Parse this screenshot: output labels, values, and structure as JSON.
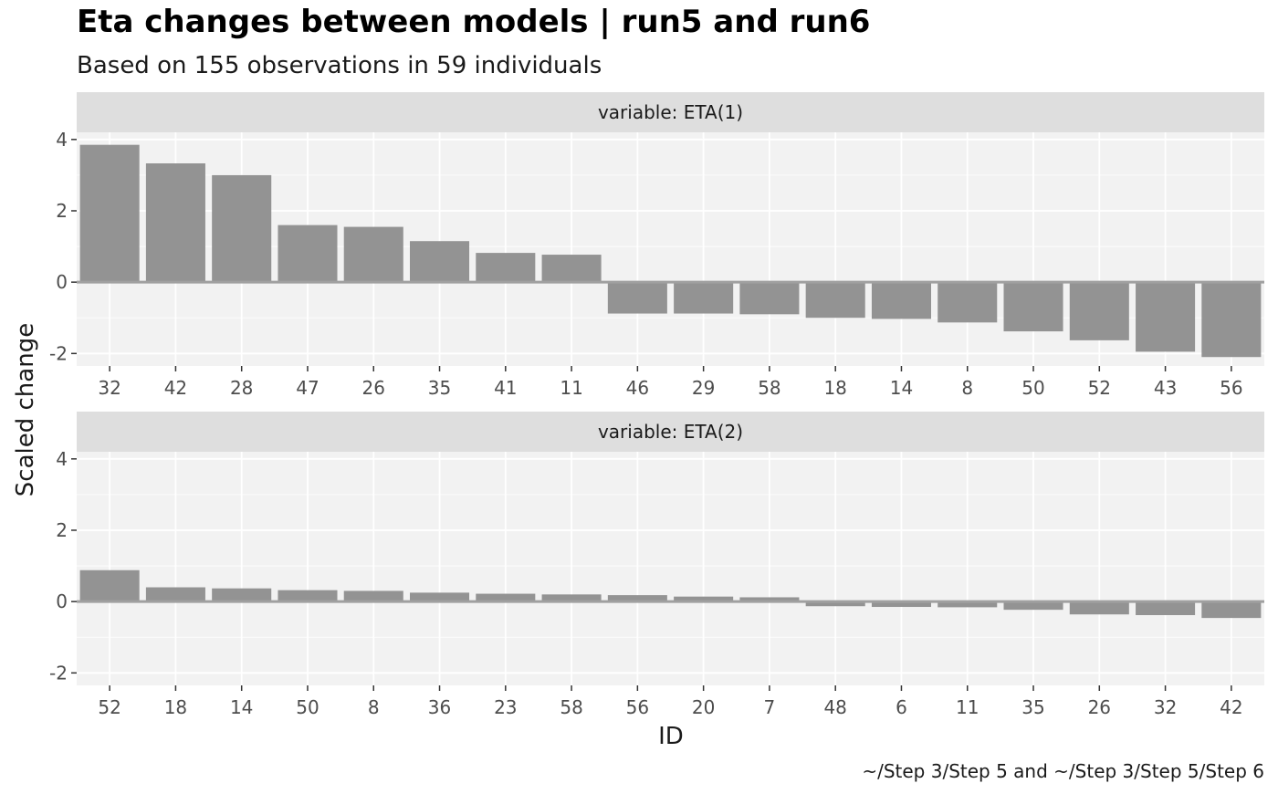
{
  "chart_data": {
    "type": "bar",
    "title": "Eta changes between models | run5 and run6",
    "subtitle": "Based on 155 observations in 59 individuals",
    "xlabel": "ID",
    "ylabel": "Scaled change",
    "caption": "~/Step 3/Step 5 and ~/Step 3/Step 5/Step 6",
    "ylim": [
      -2.35,
      4.2
    ],
    "yticks": [
      -2,
      0,
      2,
      4
    ],
    "grid": true,
    "bar_color": "#939393",
    "panel_background": "#f2f2f2",
    "strip_background": "#dedede",
    "panels": [
      {
        "strip_label": "variable: ETA(1)",
        "categories": [
          "32",
          "42",
          "28",
          "47",
          "26",
          "35",
          "41",
          "11",
          "46",
          "29",
          "58",
          "18",
          "14",
          "8",
          "50",
          "52",
          "43",
          "56"
        ],
        "values": [
          3.85,
          3.33,
          3.0,
          1.6,
          1.55,
          1.15,
          0.82,
          0.77,
          -0.88,
          -0.88,
          -0.9,
          -1.0,
          -1.03,
          -1.13,
          -1.38,
          -1.63,
          -1.95,
          -2.1
        ]
      },
      {
        "strip_label": "variable: ETA(2)",
        "categories": [
          "52",
          "18",
          "14",
          "50",
          "8",
          "36",
          "23",
          "58",
          "56",
          "20",
          "7",
          "48",
          "6",
          "11",
          "35",
          "26",
          "32",
          "42"
        ],
        "values": [
          0.88,
          0.4,
          0.37,
          0.32,
          0.3,
          0.25,
          0.22,
          0.2,
          0.18,
          0.14,
          0.12,
          -0.13,
          -0.15,
          -0.16,
          -0.23,
          -0.36,
          -0.38,
          -0.46
        ]
      }
    ]
  }
}
